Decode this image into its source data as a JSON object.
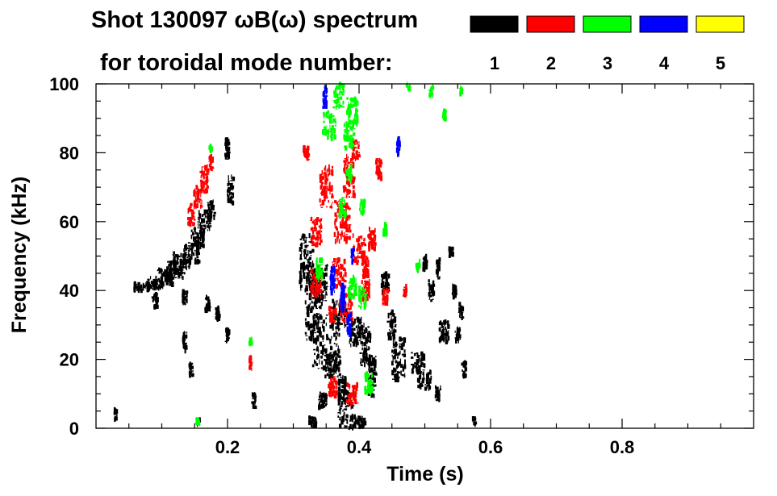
{
  "chart_data": {
    "type": "scatter",
    "subtype": "spectrogram",
    "title_line1": "Shot 130097 ωB(ω) spectrum",
    "title_line2": "for toroidal mode number:",
    "xlabel": "Time (s)",
    "ylabel": "Frequency (kHz)",
    "xlim": [
      0.0,
      1.0
    ],
    "ylim": [
      0,
      100
    ],
    "x_ticks": [
      {
        "value": 0.2,
        "label": "0.2"
      },
      {
        "value": 0.4,
        "label": "0.4"
      },
      {
        "value": 0.6,
        "label": "0.6"
      },
      {
        "value": 0.8,
        "label": "0.8"
      }
    ],
    "y_ticks": [
      {
        "value": 0,
        "label": "0"
      },
      {
        "value": 20,
        "label": "20"
      },
      {
        "value": 40,
        "label": "40"
      },
      {
        "value": 60,
        "label": "60"
      },
      {
        "value": 80,
        "label": "80"
      },
      {
        "value": 100,
        "label": "100"
      }
    ],
    "legend": [
      {
        "mode": "1",
        "color": "#000000"
      },
      {
        "mode": "2",
        "color": "#ff0000"
      },
      {
        "mode": "3",
        "color": "#00ff00"
      },
      {
        "mode": "4",
        "color": "#0000ff"
      },
      {
        "mode": "5",
        "color": "#ffff00"
      }
    ],
    "series": [
      {
        "name": "n=1",
        "color": "#000000",
        "blobs": [
          [
            0.07,
            41,
            0.012,
            1.2
          ],
          [
            0.09,
            42,
            0.012,
            1.8
          ],
          [
            0.105,
            44,
            0.012,
            2.5
          ],
          [
            0.12,
            46,
            0.012,
            2.5
          ],
          [
            0.13,
            48,
            0.012,
            3
          ],
          [
            0.145,
            51,
            0.012,
            3
          ],
          [
            0.155,
            55,
            0.01,
            3
          ],
          [
            0.165,
            60,
            0.01,
            3
          ],
          [
            0.175,
            63,
            0.006,
            3
          ],
          [
            0.205,
            69,
            0.005,
            4
          ],
          [
            0.2,
            81,
            0.003,
            3
          ],
          [
            0.135,
            38,
            0.004,
            2
          ],
          [
            0.17,
            36,
            0.004,
            2
          ],
          [
            0.185,
            33,
            0.003,
            2
          ],
          [
            0.09,
            37,
            0.004,
            2
          ],
          [
            0.135,
            25,
            0.003,
            3
          ],
          [
            0.145,
            17,
            0.003,
            2
          ],
          [
            0.24,
            8,
            0.003,
            2
          ],
          [
            0.03,
            4,
            0.002,
            1.5
          ],
          [
            0.2,
            27,
            0.003,
            2
          ],
          [
            0.155,
            2,
            0.003,
            1
          ],
          [
            0.32,
            48,
            0.01,
            8
          ],
          [
            0.33,
            35,
            0.012,
            10
          ],
          [
            0.35,
            25,
            0.02,
            8
          ],
          [
            0.34,
            42,
            0.012,
            6
          ],
          [
            0.37,
            33,
            0.012,
            4
          ],
          [
            0.395,
            28,
            0.01,
            4
          ],
          [
            0.41,
            24,
            0.008,
            6
          ],
          [
            0.42,
            15,
            0.006,
            6
          ],
          [
            0.38,
            5,
            0.012,
            6
          ],
          [
            0.375,
            11,
            0.006,
            4
          ],
          [
            0.4,
            2,
            0.01,
            1.5
          ],
          [
            0.46,
            20,
            0.01,
            6
          ],
          [
            0.49,
            19,
            0.01,
            3
          ],
          [
            0.5,
            14,
            0.01,
            3
          ],
          [
            0.53,
            28,
            0.008,
            3
          ],
          [
            0.51,
            40,
            0.004,
            3
          ],
          [
            0.52,
            46,
            0.003,
            3
          ],
          [
            0.545,
            40,
            0.003,
            2
          ],
          [
            0.555,
            34,
            0.003,
            2
          ],
          [
            0.56,
            17,
            0.003,
            2
          ],
          [
            0.575,
            2,
            0.003,
            1
          ],
          [
            0.52,
            10,
            0.004,
            2
          ],
          [
            0.44,
            42,
            0.006,
            3
          ],
          [
            0.45,
            30,
            0.006,
            4
          ],
          [
            0.36,
            18,
            0.012,
            3
          ],
          [
            0.345,
            8,
            0.006,
            2
          ],
          [
            0.33,
            2,
            0.006,
            1.5
          ],
          [
            0.55,
            27,
            0.004,
            2
          ],
          [
            0.54,
            51,
            0.003,
            1.5
          ],
          [
            0.5,
            48,
            0.003,
            2
          ]
        ]
      },
      {
        "name": "n=2",
        "color": "#ff0000",
        "blobs": [
          [
            0.145,
            62,
            0.005,
            3
          ],
          [
            0.155,
            67,
            0.006,
            3
          ],
          [
            0.165,
            72,
            0.006,
            4
          ],
          [
            0.175,
            77,
            0.003,
            2
          ],
          [
            0.235,
            19,
            0.002,
            2
          ],
          [
            0.335,
            57,
            0.008,
            4
          ],
          [
            0.35,
            70,
            0.01,
            6
          ],
          [
            0.385,
            73,
            0.008,
            6
          ],
          [
            0.375,
            60,
            0.012,
            6
          ],
          [
            0.4,
            52,
            0.01,
            4
          ],
          [
            0.37,
            45,
            0.01,
            4
          ],
          [
            0.335,
            42,
            0.008,
            4
          ],
          [
            0.38,
            35,
            0.01,
            4
          ],
          [
            0.39,
            10,
            0.008,
            3
          ],
          [
            0.36,
            12,
            0.006,
            3
          ],
          [
            0.41,
            40,
            0.006,
            3
          ],
          [
            0.42,
            55,
            0.006,
            3
          ],
          [
            0.32,
            80,
            0.004,
            2
          ],
          [
            0.395,
            81,
            0.006,
            3
          ],
          [
            0.36,
            33,
            0.005,
            2
          ],
          [
            0.41,
            47,
            0.005,
            3
          ],
          [
            0.44,
            38,
            0.004,
            2
          ],
          [
            0.47,
            40,
            0.002,
            1.5
          ],
          [
            0.43,
            75,
            0.004,
            3
          ]
        ]
      },
      {
        "name": "n=3",
        "color": "#00ff00",
        "blobs": [
          [
            0.37,
            97,
            0.008,
            4
          ],
          [
            0.39,
            92,
            0.008,
            4
          ],
          [
            0.355,
            88,
            0.01,
            4
          ],
          [
            0.385,
            85,
            0.008,
            4
          ],
          [
            0.39,
            41,
            0.006,
            3
          ],
          [
            0.405,
            38,
            0.006,
            3
          ],
          [
            0.34,
            46,
            0.005,
            3
          ],
          [
            0.415,
            13,
            0.006,
            3
          ],
          [
            0.375,
            64,
            0.005,
            3
          ],
          [
            0.51,
            98,
            0.003,
            1.5
          ],
          [
            0.475,
            100,
            0.003,
            1.5
          ],
          [
            0.53,
            91,
            0.002,
            1.5
          ],
          [
            0.555,
            98,
            0.002,
            1
          ],
          [
            0.235,
            25,
            0.002,
            1
          ],
          [
            0.175,
            81,
            0.002,
            1
          ],
          [
            0.155,
            2,
            0.002,
            1
          ],
          [
            0.405,
            64,
            0.004,
            2
          ],
          [
            0.44,
            58,
            0.003,
            2
          ],
          [
            0.49,
            47,
            0.003,
            1.5
          ],
          [
            0.385,
            74,
            0.004,
            2
          ]
        ]
      },
      {
        "name": "n=4",
        "color": "#0000ff",
        "blobs": [
          [
            0.348,
            96,
            0.003,
            3
          ],
          [
            0.36,
            43,
            0.003,
            4
          ],
          [
            0.375,
            38,
            0.003,
            4
          ],
          [
            0.385,
            30,
            0.003,
            3
          ],
          [
            0.46,
            82,
            0.002,
            3
          ],
          [
            0.39,
            50,
            0.002,
            2
          ]
        ]
      }
    ]
  }
}
